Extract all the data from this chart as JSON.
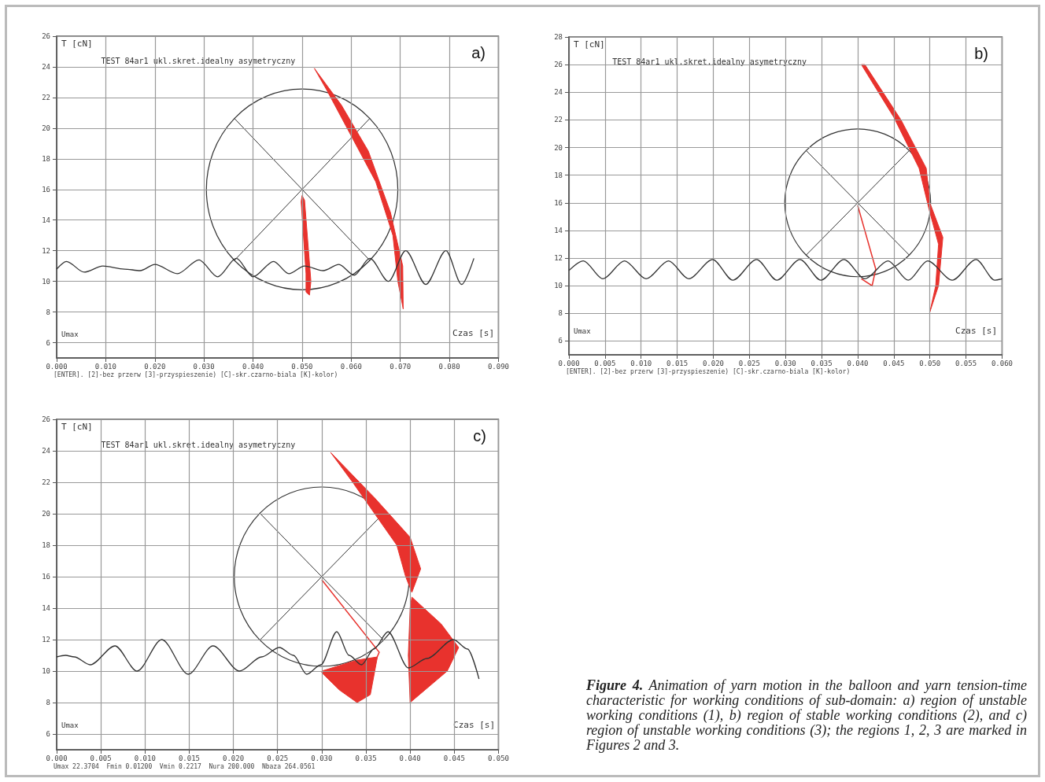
{
  "chart_data": [
    {
      "type": "line",
      "title": "a)",
      "subtitle": "TEST 84ar1 ukl.skret.idealny asymetryczny",
      "xlabel": "Czas [s]",
      "ylabel": "T [cN]",
      "annotations": [
        "Umax",
        "[ENTER]. [2]-bez przerw [3]-przyspieszenie) [C]-skr.czarno-biala [K]-kolor)"
      ],
      "x": [
        0.0,
        0.002,
        0.0056,
        0.0094,
        0.0138,
        0.017,
        0.02,
        0.0246,
        0.029,
        0.0328,
        0.0366,
        0.04,
        0.0442,
        0.0473,
        0.0505,
        0.0543,
        0.0575,
        0.0606,
        0.0638,
        0.0676,
        0.0711,
        0.0752,
        0.0793,
        0.0825,
        0.085
      ],
      "series": [
        {
          "color": "#333333",
          "values": [
            10.8,
            11.3,
            10.6,
            11.0,
            10.8,
            10.7,
            11.1,
            10.5,
            11.4,
            10.3,
            11.5,
            10.3,
            11.3,
            10.5,
            11.0,
            10.7,
            11.1,
            10.4,
            11.5,
            10.0,
            12.0,
            9.8,
            12.0,
            9.8,
            11.5
          ]
        }
      ],
      "xlim": [
        0,
        0.09
      ],
      "xticks": [
        {
          "value": 0,
          "label": "0.000"
        },
        {
          "value": 0.01,
          "label": "0.010"
        },
        {
          "value": 0.02,
          "label": "0.020"
        },
        {
          "value": 0.03,
          "label": "0.030"
        },
        {
          "value": 0.04,
          "label": "0.040"
        },
        {
          "value": 0.05,
          "label": "0.050"
        },
        {
          "value": 0.06,
          "label": "0.060"
        },
        {
          "value": 0.07,
          "label": "0.070"
        },
        {
          "value": 0.08,
          "label": "0.080"
        },
        {
          "value": 0.09,
          "label": "0.090"
        }
      ],
      "ylim": [
        5,
        26
      ],
      "yticks": [
        6,
        8,
        10,
        12,
        14,
        16,
        18,
        20,
        22,
        24,
        26
      ],
      "grid": true
    },
    {
      "type": "line",
      "title": "b)",
      "subtitle": "TEST 84ar1 ukl.skret.idealny asymetryczny",
      "xlabel": "Czas [s]",
      "ylabel": "T [cN]",
      "annotations": [
        "Umax",
        "[ENTER]. [2]-bez przerw [3]-przyspieszenie) [C]-skr.czarno-biala [K]-kolor)"
      ],
      "x": [
        0.0,
        0.002,
        0.0047,
        0.0077,
        0.0107,
        0.0138,
        0.0166,
        0.0199,
        0.0227,
        0.026,
        0.0288,
        0.032,
        0.0349,
        0.0381,
        0.041,
        0.0442,
        0.047,
        0.0497,
        0.0531,
        0.0564,
        0.059,
        0.06
      ],
      "series": [
        {
          "color": "#333333",
          "values": [
            11.1,
            11.8,
            10.5,
            11.8,
            10.5,
            11.8,
            10.5,
            11.9,
            10.4,
            11.9,
            10.4,
            11.9,
            10.4,
            11.9,
            10.5,
            11.8,
            10.4,
            11.8,
            10.4,
            11.9,
            10.4,
            10.5
          ]
        }
      ],
      "xlim": [
        0,
        0.06
      ],
      "xticks": [
        {
          "value": 0,
          "label": "0.000"
        },
        {
          "value": 0.005,
          "label": "0.005"
        },
        {
          "value": 0.01,
          "label": "0.010"
        },
        {
          "value": 0.015,
          "label": "0.015"
        },
        {
          "value": 0.02,
          "label": "0.020"
        },
        {
          "value": 0.025,
          "label": "0.025"
        },
        {
          "value": 0.03,
          "label": "0.030"
        },
        {
          "value": 0.035,
          "label": "0.035"
        },
        {
          "value": 0.04,
          "label": "0.040"
        },
        {
          "value": 0.045,
          "label": "0.045"
        },
        {
          "value": 0.05,
          "label": "0.050"
        },
        {
          "value": 0.055,
          "label": "0.055"
        },
        {
          "value": 0.06,
          "label": "0.060"
        }
      ],
      "ylim": [
        5,
        28
      ],
      "yticks": [
        6,
        8,
        10,
        12,
        14,
        16,
        18,
        20,
        22,
        24,
        26,
        28
      ],
      "grid": true
    },
    {
      "type": "line",
      "title": "c)",
      "subtitle": "TEST 84ar1 ukl.skret.idealny asymetryczny",
      "xlabel": "Czas [s]",
      "ylabel": "T [cN]",
      "annotations": [
        "Umax",
        "Umax 22.3704  Fmin 0.01200  Vmin 0.2217  Nura 200.000  Nbaza 264.0561"
      ],
      "x": [
        0.0,
        0.001,
        0.002,
        0.0038,
        0.0066,
        0.0091,
        0.0119,
        0.0149,
        0.0177,
        0.0207,
        0.0232,
        0.0252,
        0.0268,
        0.0283,
        0.0299,
        0.0317,
        0.0331,
        0.0345,
        0.0359,
        0.0375,
        0.0398,
        0.0419,
        0.0449,
        0.0465,
        0.0478
      ],
      "series": [
        {
          "color": "#333333",
          "values": [
            10.9,
            11.0,
            10.9,
            10.4,
            11.6,
            10.0,
            12.0,
            9.8,
            11.6,
            10.0,
            10.9,
            11.5,
            11.0,
            9.8,
            10.4,
            12.5,
            11.0,
            10.4,
            11.4,
            12.5,
            10.2,
            10.8,
            12.0,
            11.4,
            9.5
          ]
        }
      ],
      "xlim": [
        0,
        0.05
      ],
      "xticks": [
        {
          "value": 0,
          "label": "0.000"
        },
        {
          "value": 0.005,
          "label": "0.005"
        },
        {
          "value": 0.01,
          "label": "0.010"
        },
        {
          "value": 0.015,
          "label": "0.015"
        },
        {
          "value": 0.02,
          "label": "0.020"
        },
        {
          "value": 0.025,
          "label": "0.025"
        },
        {
          "value": 0.03,
          "label": "0.030"
        },
        {
          "value": 0.035,
          "label": "0.035"
        },
        {
          "value": 0.04,
          "label": "0.040"
        },
        {
          "value": 0.045,
          "label": "0.045"
        },
        {
          "value": 0.05,
          "label": "0.050"
        }
      ],
      "ylim": [
        5,
        26
      ],
      "yticks": [
        6,
        8,
        10,
        12,
        14,
        16,
        18,
        20,
        22,
        24,
        26
      ],
      "grid": true
    },
    {
      "type": "other",
      "annotations": [
        "Figure 4.",
        "Animation of yarn motion in the balloon and yarn tension-time characteristic for working conditions of sub-domain: a) region of unstable working conditions (1), b) region of stable working conditions (2), and c) region of unstable working conditions (3); the regions 1, 2, 3 are marked in Figures 2 and 3."
      ]
    }
  ]
}
